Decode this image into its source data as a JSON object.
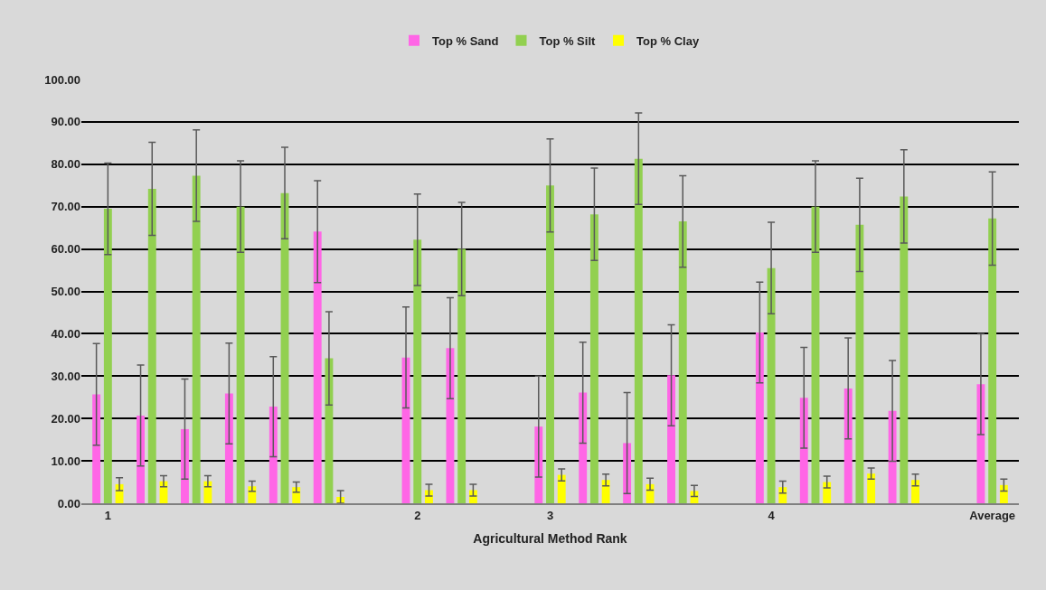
{
  "chart_data": {
    "type": "bar",
    "xlabel": "Agricultural Method Rank",
    "categories": [
      "1",
      null,
      null,
      null,
      null,
      null,
      null,
      "2",
      null,
      null,
      "3",
      null,
      null,
      null,
      null,
      "4",
      null,
      null,
      null,
      null,
      "Average"
    ],
    "series": [
      {
        "name": "Top % Sand",
        "color": "#ff66e6",
        "values": [
          25.7,
          20.7,
          17.5,
          25.9,
          22.8,
          64.1,
          null,
          34.4,
          36.6,
          null,
          18.1,
          26.1,
          14.2,
          30.2,
          null,
          40.3,
          24.9,
          27.1,
          21.8,
          null,
          28.1
        ],
        "errors": [
          12,
          11.9,
          11.8,
          11.9,
          11.8,
          12,
          null,
          11.9,
          11.9,
          null,
          11.9,
          11.9,
          11.9,
          11.9,
          null,
          11.9,
          11.9,
          11.9,
          11.9,
          null,
          11.9
        ]
      },
      {
        "name": "Top % Silt",
        "color": "#92d050",
        "values": [
          69.5,
          74.2,
          77.3,
          70.0,
          73.2,
          34.2,
          null,
          62.2,
          60.0,
          null,
          75.0,
          68.2,
          81.3,
          66.5,
          null,
          55.5,
          70.0,
          65.7,
          72.4,
          null,
          67.2
        ],
        "errors": [
          10.8,
          11,
          10.8,
          10.8,
          10.8,
          11,
          null,
          10.8,
          11,
          null,
          11,
          10.9,
          10.8,
          10.8,
          null,
          10.8,
          10.8,
          11,
          11,
          null,
          11
        ]
      },
      {
        "name": "Top % Clay",
        "color": "#ffff00",
        "values": [
          4.5,
          5.2,
          5.2,
          4.0,
          3.8,
          1.5,
          null,
          3.1,
          3.1,
          null,
          6.7,
          5.5,
          4.5,
          2.9,
          null,
          3.8,
          5.0,
          7.0,
          5.5,
          null,
          4.3
        ],
        "errors": [
          1.5,
          1.3,
          1.3,
          1.2,
          1.2,
          1.5,
          null,
          1.4,
          1.4,
          null,
          1.4,
          1.4,
          1.4,
          1.3,
          null,
          1.4,
          1.4,
          1.3,
          1.4,
          null,
          1.4
        ]
      }
    ],
    "ylim": [
      0,
      100
    ],
    "yticks": [
      {
        "value": 0,
        "label": "0.00"
      },
      {
        "value": 10,
        "label": "10.00"
      },
      {
        "value": 20,
        "label": "20.00"
      },
      {
        "value": 30,
        "label": "30.00"
      },
      {
        "value": 40,
        "label": "40.00"
      },
      {
        "value": 50,
        "label": "50.00"
      },
      {
        "value": 60,
        "label": "60.00"
      },
      {
        "value": 70,
        "label": "70.00"
      },
      {
        "value": 80,
        "label": "80.00"
      },
      {
        "value": 90,
        "label": "90.00"
      },
      {
        "value": 100,
        "label": "100.00"
      }
    ],
    "grid": "y",
    "legend": "top"
  }
}
